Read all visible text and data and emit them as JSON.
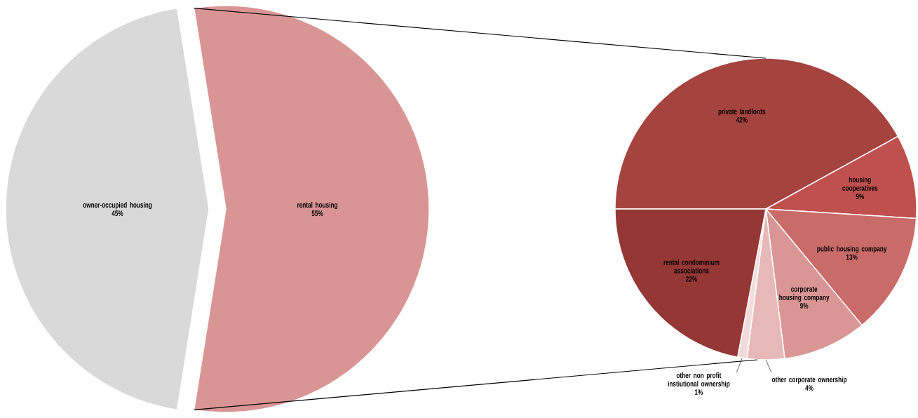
{
  "chart_data": [
    {
      "type": "pie",
      "categories": [
        "owner-occupied housing",
        "rental housing"
      ],
      "values": [
        45,
        55
      ],
      "value_labels": [
        "45%",
        "55%"
      ],
      "colors": [
        "#d9d9d9",
        "#d99594"
      ]
    },
    {
      "type": "pie",
      "categories": [
        "private landlords",
        "housing cooperatives",
        "public housing company",
        "corporate housing company",
        "other corporate ownership",
        "other non profit instiutional ownership",
        "rental condominium associations"
      ],
      "values": [
        42,
        9,
        13,
        9,
        4,
        1,
        22
      ],
      "value_labels": [
        "42%",
        "9%",
        "13%",
        "9%",
        "4%",
        "1%",
        "22%"
      ],
      "colors": [
        "#a5433f",
        "#c0504d",
        "#c86b69",
        "#d99694",
        "#e6b9b8",
        "#f2dcdb",
        "#953735"
      ]
    }
  ]
}
